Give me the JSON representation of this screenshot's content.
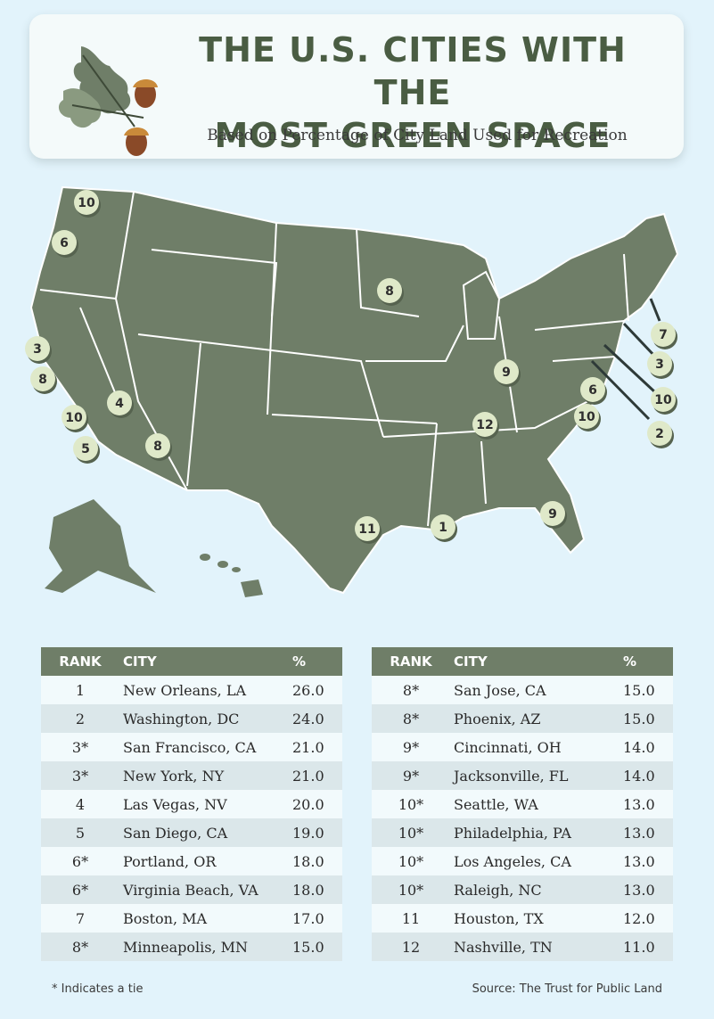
{
  "header": {
    "title_line1": "THE U.S. CITIES WITH THE",
    "title_line2": "MOST GREEN SPACE",
    "subtitle": "Based on Percentage of City Land Used for Recreation"
  },
  "colors": {
    "background": "#e2f3fb",
    "land": "#6f7e68",
    "marker": "#dfe9c9",
    "header_text": "#4a5d43",
    "table_header": "#6f7e68"
  },
  "map": {
    "markers": [
      {
        "label": "10"
      },
      {
        "label": "6"
      },
      {
        "label": "3"
      },
      {
        "label": "8"
      },
      {
        "label": "4"
      },
      {
        "label": "10"
      },
      {
        "label": "5"
      },
      {
        "label": "8"
      },
      {
        "label": "8"
      },
      {
        "label": "9"
      },
      {
        "label": "6"
      },
      {
        "label": "10"
      },
      {
        "label": "12"
      },
      {
        "label": "11"
      },
      {
        "label": "1"
      },
      {
        "label": "9"
      },
      {
        "label": "7"
      },
      {
        "label": "3"
      },
      {
        "label": "10"
      },
      {
        "label": "2"
      }
    ]
  },
  "table": {
    "headers": {
      "rank": "RANK",
      "city": "CITY",
      "pct": "%"
    },
    "left": [
      {
        "rank": "1",
        "city": "New Orleans, LA",
        "pct": "26.0"
      },
      {
        "rank": "2",
        "city": "Washington, DC",
        "pct": "24.0"
      },
      {
        "rank": "3*",
        "city": "San Francisco, CA",
        "pct": "21.0"
      },
      {
        "rank": "3*",
        "city": "New York, NY",
        "pct": "21.0"
      },
      {
        "rank": "4",
        "city": "Las Vegas, NV",
        "pct": "20.0"
      },
      {
        "rank": "5",
        "city": "San Diego, CA",
        "pct": "19.0"
      },
      {
        "rank": "6*",
        "city": "Portland, OR",
        "pct": "18.0"
      },
      {
        "rank": "6*",
        "city": "Virginia Beach, VA",
        "pct": "18.0"
      },
      {
        "rank": "7",
        "city": "Boston, MA",
        "pct": "17.0"
      },
      {
        "rank": "8*",
        "city": "Minneapolis, MN",
        "pct": "15.0"
      }
    ],
    "right": [
      {
        "rank": "8*",
        "city": "San Jose, CA",
        "pct": "15.0"
      },
      {
        "rank": "8*",
        "city": "Phoenix, AZ",
        "pct": "15.0"
      },
      {
        "rank": "9*",
        "city": "Cincinnati, OH",
        "pct": "14.0"
      },
      {
        "rank": "9*",
        "city": "Jacksonville, FL",
        "pct": "14.0"
      },
      {
        "rank": "10*",
        "city": "Seattle, WA",
        "pct": "13.0"
      },
      {
        "rank": "10*",
        "city": "Philadelphia, PA",
        "pct": "13.0"
      },
      {
        "rank": "10*",
        "city": "Los Angeles, CA",
        "pct": "13.0"
      },
      {
        "rank": "10*",
        "city": "Raleigh, NC",
        "pct": "13.0"
      },
      {
        "rank": "11",
        "city": "Houston, TX",
        "pct": "12.0"
      },
      {
        "rank": "12",
        "city": "Nashville, TN",
        "pct": "11.0"
      }
    ]
  },
  "footer": {
    "note": "* Indicates a tie",
    "source": "Source: The Trust for Public Land"
  }
}
